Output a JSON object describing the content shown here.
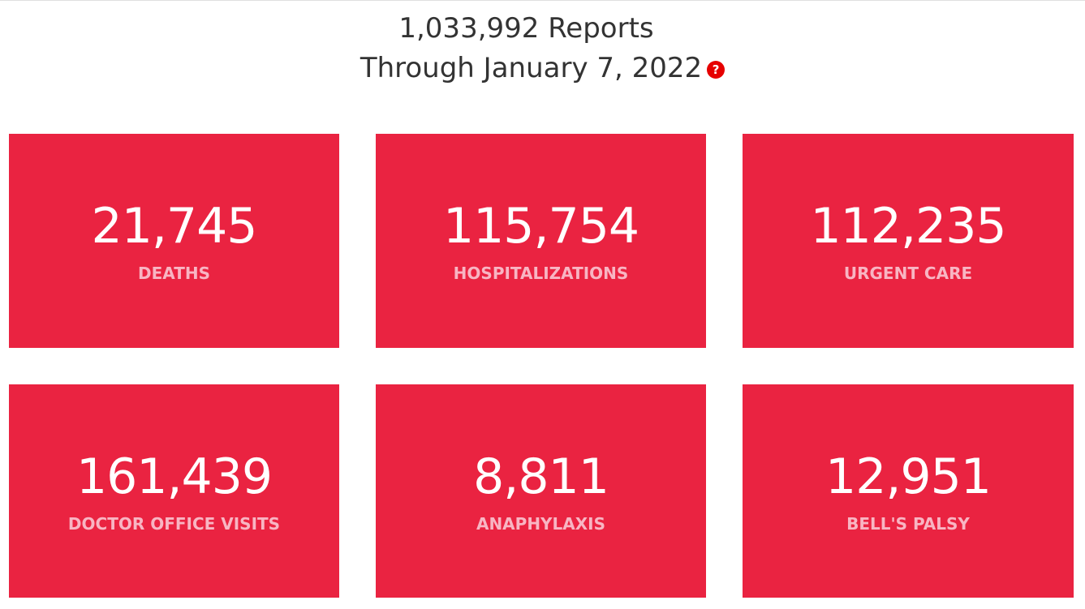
{
  "header": {
    "reports_line": "1,033,992 Reports",
    "date_line": "Through January 7, 2022",
    "help_icon": "?"
  },
  "colors": {
    "card": "#ea2341",
    "label": "#f8b5c3",
    "help": "#e60000"
  },
  "stats": [
    {
      "value": "21,745",
      "label": "DEATHS"
    },
    {
      "value": "115,754",
      "label": "HOSPITALIZATIONS"
    },
    {
      "value": "112,235",
      "label": "URGENT CARE"
    },
    {
      "value": "161,439",
      "label": "DOCTOR OFFICE VISITS"
    },
    {
      "value": "8,811",
      "label": "ANAPHYLAXIS"
    },
    {
      "value": "12,951",
      "label": "BELL'S PALSY"
    }
  ]
}
